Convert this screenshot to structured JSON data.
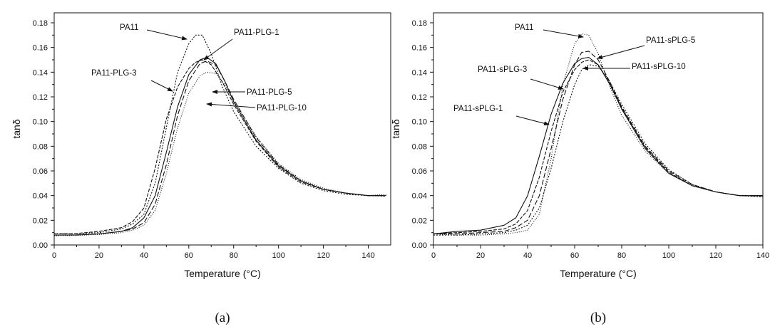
{
  "chart_data": [
    {
      "type": "line",
      "panel_label": "(a)",
      "xlabel": "Temperature (°C)",
      "ylabel": "tanδ",
      "xlim": [
        0,
        150
      ],
      "ylim": [
        0,
        0.18
      ],
      "xticks": [
        "0",
        "20",
        "40",
        "60",
        "80",
        "100",
        "120",
        "140"
      ],
      "yticks": [
        "0.00",
        "0.02",
        "0.04",
        "0.06",
        "0.08",
        "0.10",
        "0.12",
        "0.14",
        "0.16",
        "0.18"
      ],
      "grid": false,
      "legend": "none",
      "series": [
        {
          "name": "PA11",
          "x": [
            0,
            10,
            20,
            30,
            35,
            40,
            45,
            50,
            55,
            60,
            63,
            66,
            70,
            75,
            80,
            90,
            100,
            110,
            120,
            130,
            140,
            148
          ],
          "y": [
            0.009,
            0.0093,
            0.01,
            0.013,
            0.017,
            0.025,
            0.05,
            0.095,
            0.14,
            0.163,
            0.17,
            0.17,
            0.155,
            0.128,
            0.108,
            0.08,
            0.062,
            0.05,
            0.044,
            0.041,
            0.04,
            0.0395
          ]
        },
        {
          "name": "PA11-PLG-1",
          "x": [
            0,
            10,
            20,
            30,
            35,
            40,
            45,
            50,
            55,
            60,
            65,
            68,
            72,
            76,
            80,
            90,
            100,
            110,
            120,
            130,
            140,
            148
          ],
          "y": [
            0.008,
            0.008,
            0.009,
            0.011,
            0.014,
            0.022,
            0.04,
            0.075,
            0.112,
            0.138,
            0.15,
            0.152,
            0.147,
            0.133,
            0.116,
            0.085,
            0.064,
            0.052,
            0.045,
            0.042,
            0.04,
            0.04
          ]
        },
        {
          "name": "PA11-PLG-3",
          "x": [
            0,
            10,
            20,
            30,
            35,
            40,
            45,
            50,
            55,
            60,
            63,
            66,
            70,
            75,
            80,
            90,
            100,
            110,
            120,
            130,
            140,
            148
          ],
          "y": [
            0.009,
            0.0093,
            0.011,
            0.014,
            0.019,
            0.03,
            0.062,
            0.102,
            0.128,
            0.143,
            0.148,
            0.15,
            0.146,
            0.132,
            0.114,
            0.084,
            0.063,
            0.051,
            0.045,
            0.042,
            0.04,
            0.04
          ]
        },
        {
          "name": "PA11-PLG-5",
          "x": [
            0,
            10,
            20,
            30,
            35,
            40,
            45,
            50,
            55,
            60,
            65,
            68,
            72,
            76,
            80,
            90,
            100,
            110,
            120,
            130,
            140,
            148
          ],
          "y": [
            0.008,
            0.0082,
            0.009,
            0.011,
            0.013,
            0.018,
            0.033,
            0.065,
            0.105,
            0.133,
            0.147,
            0.149,
            0.146,
            0.133,
            0.118,
            0.087,
            0.065,
            0.052,
            0.045,
            0.042,
            0.04,
            0.04
          ]
        },
        {
          "name": "PA11-PLG-10",
          "x": [
            0,
            10,
            20,
            30,
            35,
            40,
            45,
            50,
            55,
            60,
            65,
            68,
            72,
            76,
            80,
            90,
            100,
            110,
            120,
            130,
            140,
            148
          ],
          "y": [
            0.0075,
            0.0078,
            0.0085,
            0.01,
            0.012,
            0.016,
            0.028,
            0.058,
            0.095,
            0.123,
            0.137,
            0.14,
            0.139,
            0.13,
            0.117,
            0.088,
            0.066,
            0.053,
            0.046,
            0.042,
            0.04,
            0.041
          ]
        }
      ],
      "annotations": [
        {
          "text": "PA11",
          "series": "PA11"
        },
        {
          "text": "PA11-PLG-1",
          "series": "PA11-PLG-1"
        },
        {
          "text": "PA11-PLG-3",
          "series": "PA11-PLG-3"
        },
        {
          "text": "PA11-PLG-5",
          "series": "PA11-PLG-5"
        },
        {
          "text": "PA11-PLG-10",
          "series": "PA11-PLG-10"
        }
      ]
    },
    {
      "type": "line",
      "panel_label": "(b)",
      "xlabel": "Temperature (°C)",
      "ylabel": "tanδ",
      "xlim": [
        0,
        140
      ],
      "ylim": [
        0,
        0.18
      ],
      "xticks": [
        "0",
        "20",
        "40",
        "60",
        "80",
        "100",
        "120",
        "140"
      ],
      "yticks": [
        "0.00",
        "0.02",
        "0.04",
        "0.06",
        "0.08",
        "0.10",
        "0.12",
        "0.14",
        "0.16",
        "0.18"
      ],
      "grid": false,
      "legend": "none",
      "series": [
        {
          "name": "PA11",
          "x": [
            0,
            10,
            20,
            30,
            35,
            40,
            45,
            50,
            55,
            60,
            63,
            66,
            70,
            75,
            80,
            90,
            100,
            110,
            120,
            130,
            140
          ],
          "y": [
            0.009,
            0.008,
            0.008,
            0.009,
            0.01,
            0.012,
            0.025,
            0.07,
            0.13,
            0.163,
            0.171,
            0.17,
            0.155,
            0.128,
            0.105,
            0.076,
            0.058,
            0.048,
            0.043,
            0.04,
            0.039
          ]
        },
        {
          "name": "PA11-sPLG-1",
          "x": [
            0,
            10,
            20,
            30,
            35,
            40,
            45,
            50,
            55,
            60,
            63,
            66,
            70,
            75,
            80,
            90,
            100,
            110,
            120,
            130,
            140
          ],
          "y": [
            0.009,
            0.011,
            0.012,
            0.016,
            0.022,
            0.04,
            0.072,
            0.106,
            0.131,
            0.147,
            0.151,
            0.152,
            0.146,
            0.13,
            0.11,
            0.078,
            0.058,
            0.048,
            0.043,
            0.04,
            0.04
          ]
        },
        {
          "name": "PA11-sPLG-3",
          "x": [
            0,
            10,
            20,
            30,
            35,
            40,
            45,
            50,
            55,
            60,
            63,
            66,
            70,
            75,
            80,
            90,
            100,
            110,
            120,
            130,
            140
          ],
          "y": [
            0.009,
            0.01,
            0.011,
            0.013,
            0.017,
            0.028,
            0.055,
            0.092,
            0.124,
            0.142,
            0.148,
            0.15,
            0.146,
            0.131,
            0.111,
            0.079,
            0.059,
            0.048,
            0.043,
            0.04,
            0.04
          ]
        },
        {
          "name": "PA11-sPLG-5",
          "x": [
            0,
            10,
            20,
            30,
            35,
            40,
            45,
            50,
            55,
            60,
            63,
            66,
            70,
            75,
            80,
            90,
            100,
            110,
            120,
            130,
            140
          ],
          "y": [
            0.009,
            0.009,
            0.01,
            0.011,
            0.014,
            0.02,
            0.04,
            0.078,
            0.118,
            0.146,
            0.156,
            0.157,
            0.15,
            0.132,
            0.112,
            0.08,
            0.06,
            0.049,
            0.043,
            0.04,
            0.04
          ]
        },
        {
          "name": "PA11-sPLG-10",
          "x": [
            0,
            10,
            20,
            30,
            35,
            40,
            45,
            50,
            55,
            60,
            63,
            66,
            70,
            75,
            80,
            90,
            100,
            110,
            120,
            130,
            140
          ],
          "y": [
            0.008,
            0.008,
            0.009,
            0.01,
            0.012,
            0.016,
            0.03,
            0.062,
            0.1,
            0.13,
            0.142,
            0.146,
            0.145,
            0.132,
            0.114,
            0.082,
            0.061,
            0.049,
            0.043,
            0.04,
            0.039
          ]
        }
      ],
      "annotations": [
        {
          "text": "PA11",
          "series": "PA11"
        },
        {
          "text": "PA11-sPLG-5",
          "series": "PA11-sPLG-5"
        },
        {
          "text": "PA11-sPLG-3",
          "series": "PA11-sPLG-3"
        },
        {
          "text": "PA11-sPLG-10",
          "series": "PA11-sPLG-10"
        },
        {
          "text": "PA11-sPLG-1",
          "series": "PA11-sPLG-1"
        }
      ]
    }
  ]
}
